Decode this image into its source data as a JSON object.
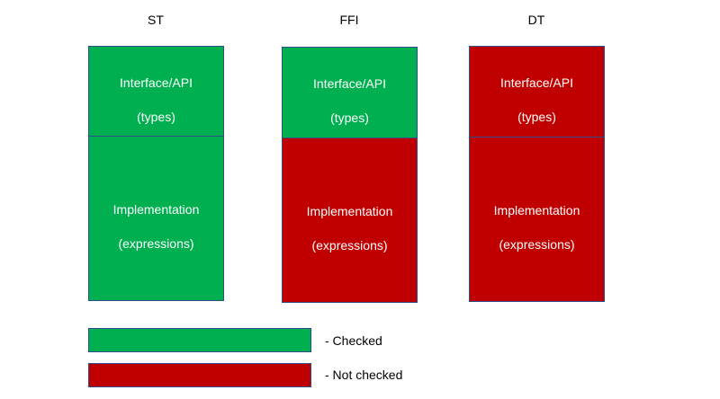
{
  "colors": {
    "checked": "#00b050",
    "not_checked": "#c00000",
    "border": "#2f4d8a"
  },
  "columns": [
    {
      "title": "ST",
      "interface": {
        "line1": "Interface/API",
        "line2": "(types)",
        "status": "checked"
      },
      "implementation": {
        "line1": "Implementation",
        "line2": "(expressions)",
        "status": "checked"
      }
    },
    {
      "title": "FFI",
      "interface": {
        "line1": "Interface/API",
        "line2": "(types)",
        "status": "checked"
      },
      "implementation": {
        "line1": "Implementation",
        "line2": "(expressions)",
        "status": "not_checked"
      }
    },
    {
      "title": "DT",
      "interface": {
        "line1": "Interface/API",
        "line2": "(types)",
        "status": "not_checked"
      },
      "implementation": {
        "line1": "Implementation",
        "line2": "(expressions)",
        "status": "not_checked"
      }
    }
  ],
  "legend": [
    {
      "status": "checked",
      "label": "- Checked"
    },
    {
      "status": "not_checked",
      "label": "- Not checked"
    }
  ]
}
